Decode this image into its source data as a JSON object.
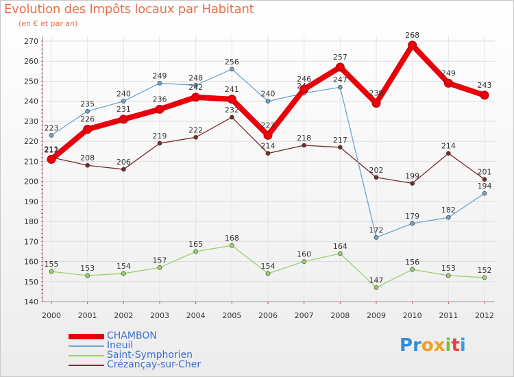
{
  "chart_data": {
    "type": "line",
    "title": "Evolution des Impôts locaux par Habitant",
    "subtitle": "(en € et par an)",
    "categories": [
      "2000",
      "2001",
      "2002",
      "2003",
      "2004",
      "2005",
      "2006",
      "2007",
      "2008",
      "2009",
      "2010",
      "2011",
      "2012"
    ],
    "ylim": [
      140,
      270
    ],
    "yticks": [
      140,
      150,
      160,
      170,
      180,
      190,
      200,
      210,
      220,
      230,
      240,
      250,
      260,
      270
    ],
    "grid": true,
    "legend_position": "bottom-left",
    "series": [
      {
        "name": "CHAMBON",
        "color": "#e8000b",
        "emphasis": "thick",
        "values": [
          211,
          226,
          231,
          236,
          242,
          241,
          223,
          246,
          257,
          239,
          268,
          249,
          243
        ]
      },
      {
        "name": "Ineuil",
        "color": "#6ea4d0",
        "emphasis": "thin",
        "values": [
          223,
          235,
          240,
          249,
          248,
          256,
          240,
          244,
          247,
          172,
          179,
          182,
          194
        ]
      },
      {
        "name": "Saint-Symphorien",
        "color": "#99d068",
        "emphasis": "thin",
        "values": [
          155,
          153,
          154,
          157,
          165,
          168,
          154,
          160,
          164,
          147,
          156,
          153,
          152
        ]
      },
      {
        "name": "Crézançay-sur-Cher",
        "color": "#7a2a2a",
        "emphasis": "thin",
        "values": [
          212,
          208,
          206,
          219,
          222,
          232,
          214,
          218,
          217,
          202,
          199,
          214,
          201
        ]
      }
    ]
  },
  "logo": {
    "letters": [
      "P",
      "r",
      "o",
      "x",
      "i",
      "t",
      "i"
    ],
    "colors": [
      "#2f8fd8",
      "#2f8fd8",
      "#f0a020",
      "#f0a020",
      "#7cc040",
      "#e84040",
      "#3aa0e0"
    ]
  }
}
